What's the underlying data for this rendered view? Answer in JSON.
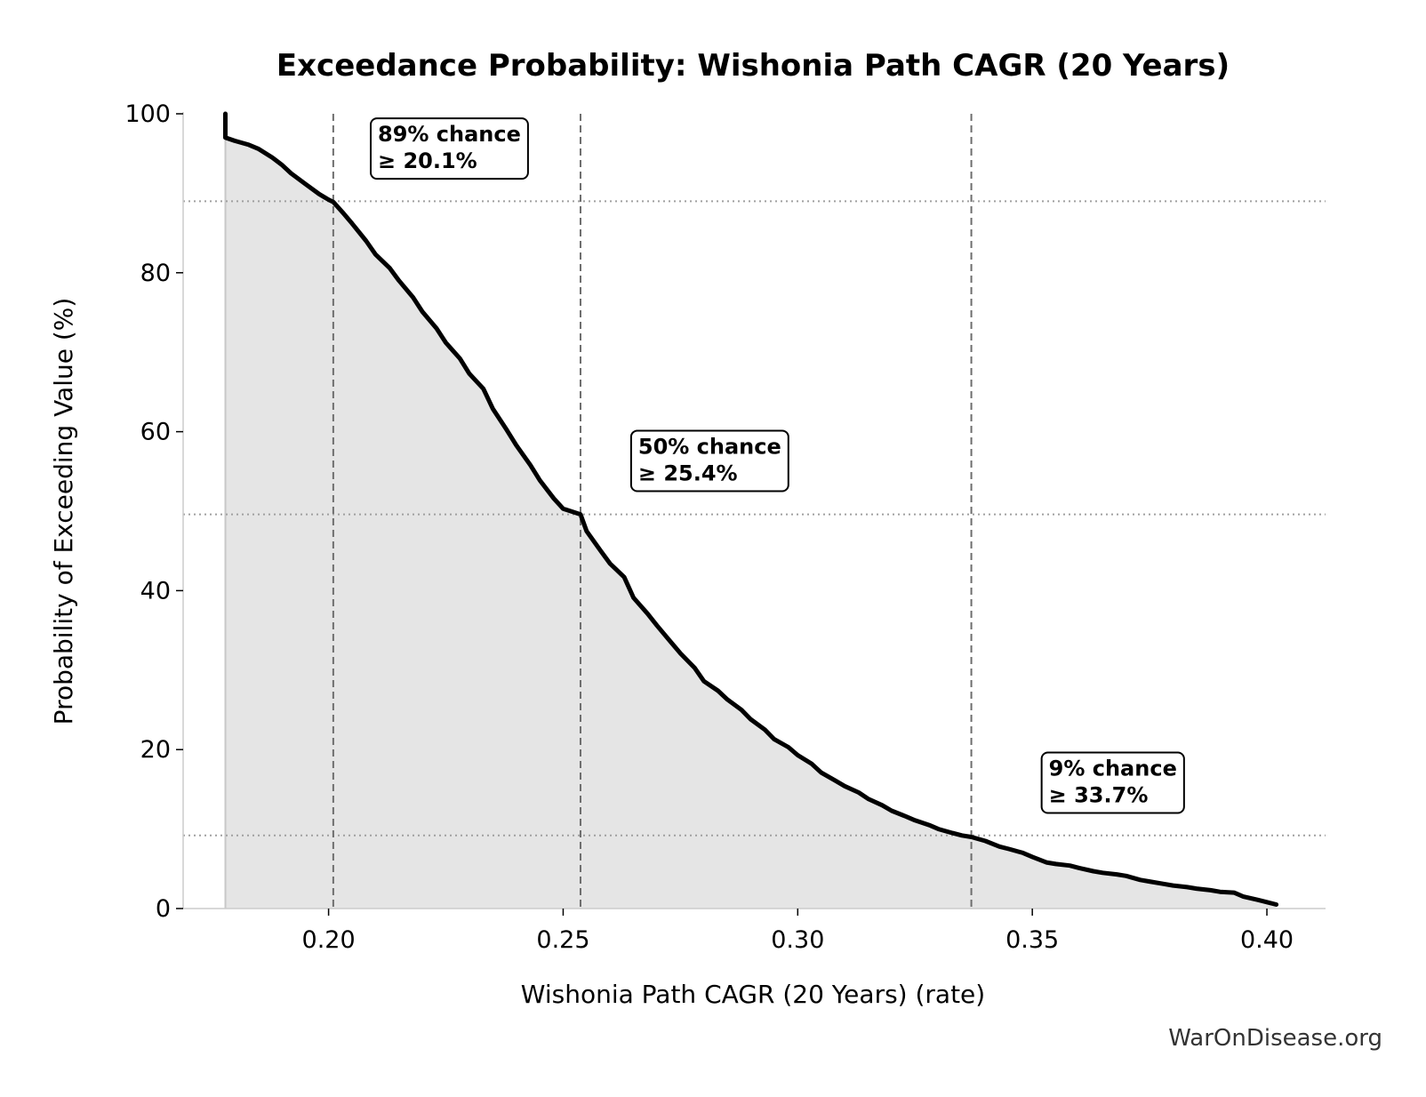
{
  "chart_data": {
    "type": "line",
    "title": "Exceedance Probability: Wishonia Path CAGR (20 Years)",
    "xlabel": "Wishonia Path CAGR (20 Years) (rate)",
    "ylabel": "Probability of Exceeding Value (%)",
    "xlim": [
      0.169,
      0.4125
    ],
    "ylim": [
      0,
      100
    ],
    "xticks": [
      0.2,
      0.25,
      0.3,
      0.35,
      0.4
    ],
    "xtick_labels": [
      "0.20",
      "0.25",
      "0.30",
      "0.35",
      "0.40"
    ],
    "yticks": [
      0,
      20,
      40,
      60,
      80,
      100
    ],
    "ytick_labels": [
      "0",
      "20",
      "40",
      "60",
      "80",
      "100"
    ],
    "grid": false,
    "fill_under_curve": true,
    "series": [
      {
        "x": [
          0.178,
          0.178,
          0.18,
          0.183,
          0.185,
          0.188,
          0.19,
          0.192,
          0.195,
          0.198,
          0.2,
          0.201,
          0.203,
          0.205,
          0.208,
          0.21,
          0.213,
          0.215,
          0.218,
          0.22,
          0.223,
          0.225,
          0.228,
          0.23,
          0.233,
          0.235,
          0.238,
          0.24,
          0.243,
          0.245,
          0.248,
          0.25,
          0.2537,
          0.255,
          0.258,
          0.26,
          0.263,
          0.265,
          0.268,
          0.27,
          0.273,
          0.275,
          0.278,
          0.28,
          0.283,
          0.285,
          0.288,
          0.29,
          0.293,
          0.295,
          0.298,
          0.3,
          0.303,
          0.305,
          0.308,
          0.31,
          0.313,
          0.315,
          0.318,
          0.32,
          0.323,
          0.325,
          0.328,
          0.33,
          0.333,
          0.335,
          0.337,
          0.34,
          0.343,
          0.345,
          0.348,
          0.35,
          0.353,
          0.355,
          0.358,
          0.36,
          0.363,
          0.365,
          0.368,
          0.37,
          0.373,
          0.375,
          0.378,
          0.38,
          0.383,
          0.385,
          0.388,
          0.39,
          0.393,
          0.395,
          0.398,
          0.4,
          0.402
        ],
        "y": [
          100,
          97.0,
          96.6,
          96.1,
          95.6,
          94.5,
          93.6,
          92.5,
          91.2,
          89.9,
          89.2,
          88.9,
          87.6,
          86.2,
          84.0,
          82.3,
          80.6,
          79.0,
          76.9,
          75.1,
          73.0,
          71.2,
          69.2,
          67.3,
          65.4,
          62.9,
          60.2,
          58.3,
          55.8,
          53.9,
          51.6,
          50.3,
          49.6,
          47.5,
          45.0,
          43.4,
          41.7,
          39.1,
          37.1,
          35.6,
          33.5,
          32.1,
          30.3,
          28.6,
          27.4,
          26.3,
          25.0,
          23.8,
          22.5,
          21.3,
          20.3,
          19.3,
          18.2,
          17.1,
          16.1,
          15.4,
          14.6,
          13.8,
          13.0,
          12.3,
          11.6,
          11.1,
          10.5,
          10.0,
          9.5,
          9.2,
          9.0,
          8.5,
          7.8,
          7.5,
          7.0,
          6.5,
          5.8,
          5.6,
          5.4,
          5.1,
          4.7,
          4.5,
          4.3,
          4.1,
          3.6,
          3.4,
          3.1,
          2.9,
          2.7,
          2.5,
          2.3,
          2.1,
          2.0,
          1.5,
          1.1,
          0.8,
          0.5
        ]
      }
    ],
    "reference_lines": {
      "vertical_x": [
        0.201,
        0.2537,
        0.337
      ],
      "horizontal_y": [
        89,
        49.6,
        9.2
      ]
    },
    "annotations": [
      {
        "line1": "89% chance",
        "line2": "≥ 20.1%",
        "x": 0.2105,
        "y": 93.5
      },
      {
        "line1": "50% chance",
        "line2": "≥ 25.4%",
        "x": 0.266,
        "y": 54.2
      },
      {
        "line1": "9% chance",
        "line2": "≥ 33.7%",
        "x": 0.3535,
        "y": 13.7
      }
    ],
    "colors": {
      "line": "#000000",
      "fill": "#e5e5e5",
      "vertical_ref": "#6e6e6e",
      "horizontal_ref": "#a0a0a0",
      "spine": "#cccccc"
    }
  },
  "watermark": "WarOnDisease.org"
}
